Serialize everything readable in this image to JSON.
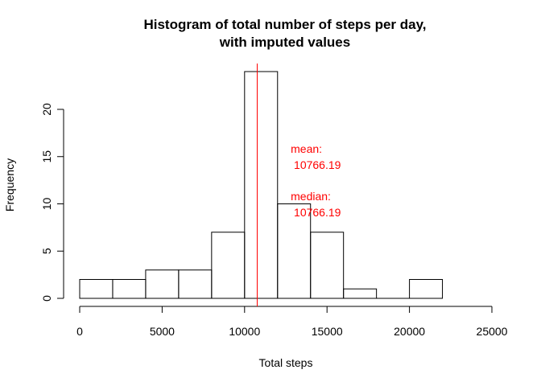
{
  "chart_data": {
    "type": "bar",
    "title": [
      "Histogram of total number of steps per day,",
      "with imputed values"
    ],
    "xlabel": "Total steps",
    "ylabel": "Frequency",
    "bins": [
      {
        "x0": 0,
        "x1": 2000,
        "count": 2
      },
      {
        "x0": 2000,
        "x1": 4000,
        "count": 2
      },
      {
        "x0": 4000,
        "x1": 6000,
        "count": 3
      },
      {
        "x0": 6000,
        "x1": 8000,
        "count": 3
      },
      {
        "x0": 8000,
        "x1": 10000,
        "count": 7
      },
      {
        "x0": 10000,
        "x1": 12000,
        "count": 24
      },
      {
        "x0": 12000,
        "x1": 14000,
        "count": 10
      },
      {
        "x0": 14000,
        "x1": 16000,
        "count": 7
      },
      {
        "x0": 16000,
        "x1": 18000,
        "count": 1
      },
      {
        "x0": 18000,
        "x1": 20000,
        "count": 0
      },
      {
        "x0": 20000,
        "x1": 22000,
        "count": 2
      }
    ],
    "xlim": [
      0,
      25000
    ],
    "ylim": [
      0,
      24
    ],
    "xticks": [
      "0",
      "5000",
      "10000",
      "15000",
      "20000",
      "25000"
    ],
    "yticks": [
      "0",
      "5",
      "10",
      "15",
      "20"
    ],
    "grid": false,
    "vline": {
      "x": 10766.19,
      "color": "#ff0000"
    },
    "annotations": [
      {
        "lines": [
          "mean:",
          " 10766.19"
        ],
        "x": 12800,
        "y": 16.5,
        "color": "#ff0000"
      },
      {
        "lines": [
          "median:",
          " 10766.19"
        ],
        "x": 12800,
        "y": 11.5,
        "color": "#ff0000"
      }
    ]
  }
}
